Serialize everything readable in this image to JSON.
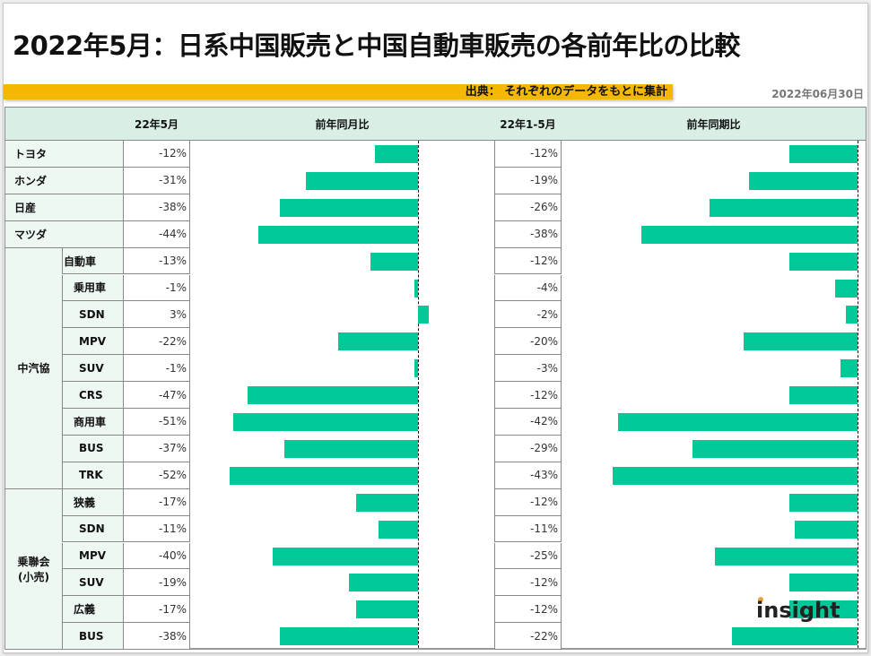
{
  "header": {
    "title": "2022年5月：日系中国販売と中国自動車販売の各前年比の比較",
    "source": "出典： それぞれのデータをもとに集計",
    "date": "2022年06月30日"
  },
  "table": {
    "columns": [
      "",
      "22年5月",
      "前年同月比",
      "22年1-5月",
      "前年同期比"
    ],
    "groups": [
      {
        "label": "中汽協",
        "row_start": 4,
        "row_end": 12
      },
      {
        "label": "乗聯会\n(小売)",
        "row_start": 13,
        "row_end": 18
      }
    ],
    "rows": [
      {
        "label": "トヨタ",
        "group": null,
        "indent": 0,
        "may": "-12%",
        "ytd": "-12%"
      },
      {
        "label": "ホンダ",
        "group": null,
        "indent": 0,
        "may": "-31%",
        "ytd": "-19%"
      },
      {
        "label": "日産",
        "group": null,
        "indent": 0,
        "may": "-38%",
        "ytd": "-26%"
      },
      {
        "label": "マツダ",
        "group": null,
        "indent": 0,
        "may": "-44%",
        "ytd": "-38%"
      },
      {
        "label": "自動車",
        "group": "中汽協",
        "indent": 0,
        "may": "-13%",
        "ytd": "-12%"
      },
      {
        "label": "乗用車",
        "group": "中汽協",
        "indent": 1,
        "may": "-1%",
        "ytd": "-4%"
      },
      {
        "label": "SDN",
        "group": "中汽協",
        "indent": 2,
        "may": "3%",
        "ytd": "-2%"
      },
      {
        "label": "MPV",
        "group": "中汽協",
        "indent": 2,
        "may": "-22%",
        "ytd": "-20%"
      },
      {
        "label": "SUV",
        "group": "中汽協",
        "indent": 2,
        "may": "-1%",
        "ytd": "-3%"
      },
      {
        "label": "CRS",
        "group": "中汽協",
        "indent": 2,
        "may": "-47%",
        "ytd": "-12%"
      },
      {
        "label": "商用車",
        "group": "中汽協",
        "indent": 1,
        "may": "-51%",
        "ytd": "-42%"
      },
      {
        "label": "BUS",
        "group": "中汽協",
        "indent": 2,
        "may": "-37%",
        "ytd": "-29%"
      },
      {
        "label": "TRK",
        "group": "中汽協",
        "indent": 2,
        "may": "-52%",
        "ytd": "-43%"
      },
      {
        "label": "狭義",
        "group": "乗聯会(小売)",
        "indent": 1,
        "may": "-17%",
        "ytd": "-12%"
      },
      {
        "label": "SDN",
        "group": "乗聯会(小売)",
        "indent": 2,
        "may": "-11%",
        "ytd": "-11%"
      },
      {
        "label": "MPV",
        "group": "乗聯会(小売)",
        "indent": 2,
        "may": "-40%",
        "ytd": "-25%"
      },
      {
        "label": "SUV",
        "group": "乗聯会(小売)",
        "indent": 2,
        "may": "-19%",
        "ytd": "-12%"
      },
      {
        "label": "広義",
        "group": "乗聯会(小売)",
        "indent": 1,
        "may": "-17%",
        "ytd": "-12%"
      },
      {
        "label": "BUS",
        "group": "乗聯会(小売)",
        "indent": 2,
        "may": "-38%",
        "ytd": "-22%"
      }
    ]
  },
  "logo": {
    "text": "insight"
  },
  "colors": {
    "bar": "#00c896",
    "header_bg": "#d9efe6",
    "label_bg": "#eef8f3",
    "source_bar": "#f5b800"
  },
  "chart_data": [
    {
      "type": "bar",
      "orientation": "horizontal",
      "title": "前年同月比",
      "categories": [
        "トヨタ",
        "ホンダ",
        "日産",
        "マツダ",
        "中汽協 自動車",
        "中汽協 乗用車",
        "中汽協 SDN",
        "中汽協 MPV",
        "中汽協 SUV",
        "中汽協 CRS",
        "中汽協 商用車",
        "中汽協 BUS",
        "中汽協 TRK",
        "乗聯会 狭義",
        "乗聯会 SDN",
        "乗聯会 MPV",
        "乗聯会 SUV",
        "乗聯会 広義",
        "乗聯会 BUS"
      ],
      "values": [
        -12,
        -31,
        -38,
        -44,
        -13,
        -1,
        3,
        -22,
        -1,
        -47,
        -51,
        -37,
        -52,
        -17,
        -11,
        -40,
        -19,
        -17,
        -38
      ],
      "xlabel": "",
      "ylabel": "",
      "unit": "%",
      "zero_line": "dashed",
      "grid": false
    },
    {
      "type": "bar",
      "orientation": "horizontal",
      "title": "前年同期比",
      "categories": [
        "トヨタ",
        "ホンダ",
        "日産",
        "マツダ",
        "中汽協 自動車",
        "中汽協 乗用車",
        "中汽協 SDN",
        "中汽協 MPV",
        "中汽協 SUV",
        "中汽協 CRS",
        "中汽協 商用車",
        "中汽協 BUS",
        "中汽協 TRK",
        "乗聯会 狭義",
        "乗聯会 SDN",
        "乗聯会 MPV",
        "乗聯会 SUV",
        "乗聯会 広義",
        "乗聯会 BUS"
      ],
      "values": [
        -12,
        -19,
        -26,
        -38,
        -12,
        -4,
        -2,
        -20,
        -3,
        -12,
        -42,
        -29,
        -43,
        -12,
        -11,
        -25,
        -12,
        -12,
        -22
      ],
      "xlabel": "",
      "ylabel": "",
      "unit": "%",
      "zero_line": "dashed",
      "grid": false
    }
  ]
}
